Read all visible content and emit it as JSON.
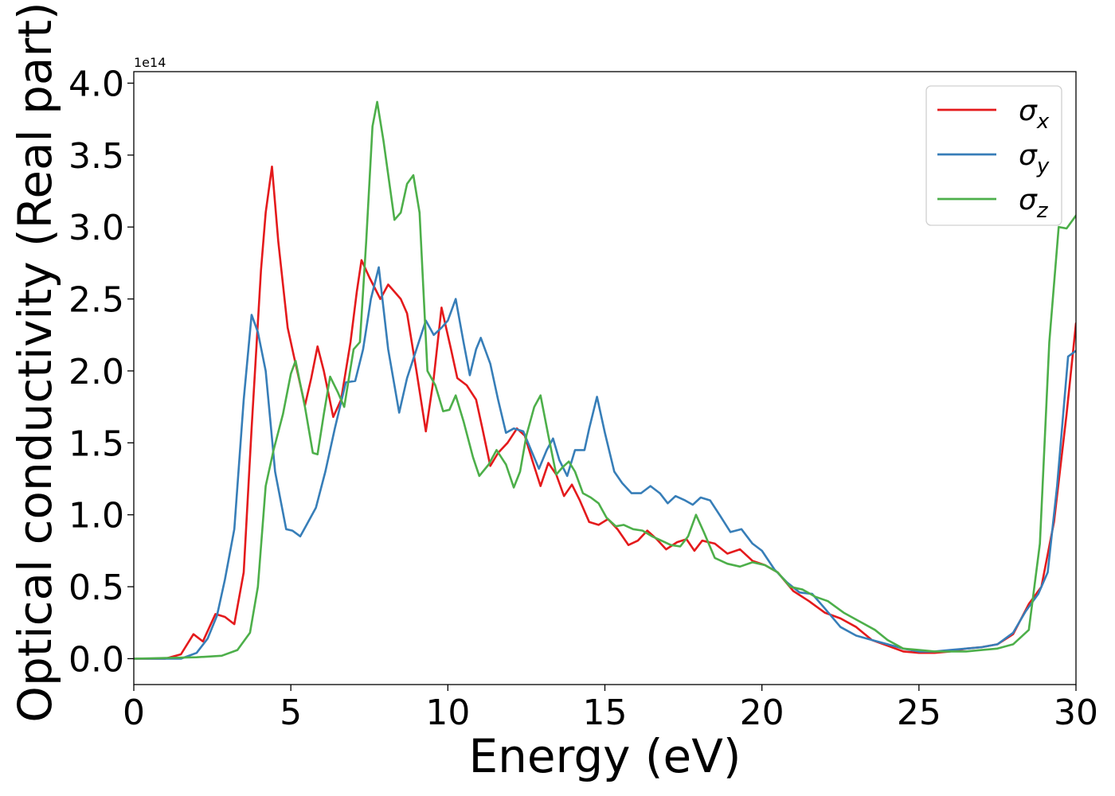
{
  "chart_data": {
    "type": "line",
    "title": "",
    "xlabel": "Energy (eV)",
    "ylabel": "Optical conductivity (Real part)",
    "y_offset_label": "1e14",
    "xlim": [
      0,
      30
    ],
    "ylim": [
      -0.18,
      4.08
    ],
    "xticks": [
      0,
      5,
      10,
      15,
      20,
      25,
      30
    ],
    "yticks": [
      0.0,
      0.5,
      1.0,
      1.5,
      2.0,
      2.5,
      3.0,
      3.5,
      4.0
    ],
    "xtick_labels": [
      "0",
      "5",
      "10",
      "15",
      "20",
      "25",
      "30"
    ],
    "ytick_labels": [
      "0.0",
      "0.5",
      "1.0",
      "1.5",
      "2.0",
      "2.5",
      "3.0",
      "3.5",
      "4.0"
    ],
    "grid": false,
    "legend": "top-right",
    "series": [
      {
        "name": "σ",
        "subscript": "x",
        "color": "#e41a1c",
        "points": [
          [
            0,
            0
          ],
          [
            1.0,
            0.0
          ],
          [
            1.5,
            0.03
          ],
          [
            1.9,
            0.17
          ],
          [
            2.2,
            0.12
          ],
          [
            2.6,
            0.31
          ],
          [
            2.9,
            0.29
          ],
          [
            3.2,
            0.24
          ],
          [
            3.5,
            0.6
          ],
          [
            3.75,
            1.6
          ],
          [
            4.05,
            2.7
          ],
          [
            4.2,
            3.1
          ],
          [
            4.4,
            3.42
          ],
          [
            4.6,
            2.9
          ],
          [
            4.9,
            2.3
          ],
          [
            5.1,
            2.1
          ],
          [
            5.45,
            1.76
          ],
          [
            5.65,
            1.95
          ],
          [
            5.85,
            2.17
          ],
          [
            6.05,
            2.0
          ],
          [
            6.35,
            1.68
          ],
          [
            6.6,
            1.8
          ],
          [
            6.9,
            2.2
          ],
          [
            7.1,
            2.55
          ],
          [
            7.25,
            2.77
          ],
          [
            7.5,
            2.65
          ],
          [
            7.85,
            2.5
          ],
          [
            8.1,
            2.6
          ],
          [
            8.3,
            2.55
          ],
          [
            8.5,
            2.5
          ],
          [
            8.7,
            2.4
          ],
          [
            9.0,
            2.0
          ],
          [
            9.3,
            1.58
          ],
          [
            9.55,
            1.95
          ],
          [
            9.8,
            2.44
          ],
          [
            10.1,
            2.15
          ],
          [
            10.3,
            1.95
          ],
          [
            10.6,
            1.9
          ],
          [
            10.9,
            1.8
          ],
          [
            11.1,
            1.6
          ],
          [
            11.35,
            1.34
          ],
          [
            11.6,
            1.43
          ],
          [
            11.9,
            1.5
          ],
          [
            12.2,
            1.6
          ],
          [
            12.45,
            1.55
          ],
          [
            12.7,
            1.37
          ],
          [
            12.95,
            1.2
          ],
          [
            13.2,
            1.36
          ],
          [
            13.45,
            1.28
          ],
          [
            13.7,
            1.13
          ],
          [
            13.95,
            1.21
          ],
          [
            14.2,
            1.1
          ],
          [
            14.5,
            0.95
          ],
          [
            14.8,
            0.93
          ],
          [
            15.1,
            0.97
          ],
          [
            15.4,
            0.9
          ],
          [
            15.75,
            0.79
          ],
          [
            16.05,
            0.82
          ],
          [
            16.35,
            0.89
          ],
          [
            16.65,
            0.83
          ],
          [
            16.95,
            0.76
          ],
          [
            17.3,
            0.81
          ],
          [
            17.6,
            0.83
          ],
          [
            17.85,
            0.75
          ],
          [
            18.1,
            0.82
          ],
          [
            18.5,
            0.8
          ],
          [
            18.9,
            0.73
          ],
          [
            19.3,
            0.76
          ],
          [
            19.7,
            0.68
          ],
          [
            20.1,
            0.65
          ],
          [
            20.5,
            0.6
          ],
          [
            21.0,
            0.47
          ],
          [
            21.5,
            0.4
          ],
          [
            22.0,
            0.32
          ],
          [
            22.5,
            0.28
          ],
          [
            23.0,
            0.22
          ],
          [
            23.5,
            0.13
          ],
          [
            24.0,
            0.09
          ],
          [
            24.5,
            0.05
          ],
          [
            25.0,
            0.04
          ],
          [
            25.5,
            0.04
          ],
          [
            26.0,
            0.05
          ],
          [
            26.5,
            0.07
          ],
          [
            27.0,
            0.08
          ],
          [
            27.5,
            0.1
          ],
          [
            28.0,
            0.17
          ],
          [
            28.5,
            0.38
          ],
          [
            28.9,
            0.5
          ],
          [
            29.3,
            0.95
          ],
          [
            29.7,
            1.7
          ],
          [
            30.0,
            2.33
          ]
        ]
      },
      {
        "name": "σ",
        "subscript": "y",
        "color": "#377eb8",
        "points": [
          [
            0,
            0
          ],
          [
            1.5,
            0.0
          ],
          [
            2.0,
            0.04
          ],
          [
            2.35,
            0.14
          ],
          [
            2.65,
            0.3
          ],
          [
            2.9,
            0.55
          ],
          [
            3.2,
            0.9
          ],
          [
            3.5,
            1.8
          ],
          [
            3.75,
            2.39
          ],
          [
            3.95,
            2.27
          ],
          [
            4.2,
            2.0
          ],
          [
            4.5,
            1.3
          ],
          [
            4.85,
            0.9
          ],
          [
            5.05,
            0.89
          ],
          [
            5.3,
            0.85
          ],
          [
            5.55,
            0.95
          ],
          [
            5.8,
            1.05
          ],
          [
            6.1,
            1.3
          ],
          [
            6.4,
            1.6
          ],
          [
            6.75,
            1.92
          ],
          [
            7.05,
            1.93
          ],
          [
            7.3,
            2.15
          ],
          [
            7.55,
            2.5
          ],
          [
            7.8,
            2.72
          ],
          [
            8.1,
            2.15
          ],
          [
            8.45,
            1.71
          ],
          [
            8.7,
            1.95
          ],
          [
            9.0,
            2.15
          ],
          [
            9.3,
            2.35
          ],
          [
            9.55,
            2.25
          ],
          [
            9.8,
            2.3
          ],
          [
            10.0,
            2.35
          ],
          [
            10.25,
            2.5
          ],
          [
            10.5,
            2.2
          ],
          [
            10.7,
            1.97
          ],
          [
            10.9,
            2.15
          ],
          [
            11.05,
            2.23
          ],
          [
            11.35,
            2.05
          ],
          [
            11.6,
            1.8
          ],
          [
            11.85,
            1.57
          ],
          [
            12.1,
            1.6
          ],
          [
            12.4,
            1.58
          ],
          [
            12.65,
            1.45
          ],
          [
            12.9,
            1.32
          ],
          [
            13.15,
            1.45
          ],
          [
            13.35,
            1.53
          ],
          [
            13.55,
            1.38
          ],
          [
            13.8,
            1.27
          ],
          [
            14.05,
            1.45
          ],
          [
            14.35,
            1.45
          ],
          [
            14.5,
            1.6
          ],
          [
            14.75,
            1.82
          ],
          [
            15.0,
            1.57
          ],
          [
            15.3,
            1.3
          ],
          [
            15.55,
            1.22
          ],
          [
            15.85,
            1.15
          ],
          [
            16.15,
            1.15
          ],
          [
            16.45,
            1.2
          ],
          [
            16.75,
            1.15
          ],
          [
            17.0,
            1.08
          ],
          [
            17.25,
            1.13
          ],
          [
            17.55,
            1.1
          ],
          [
            17.8,
            1.07
          ],
          [
            18.05,
            1.12
          ],
          [
            18.35,
            1.1
          ],
          [
            18.65,
            1.0
          ],
          [
            19.0,
            0.88
          ],
          [
            19.35,
            0.9
          ],
          [
            19.7,
            0.8
          ],
          [
            20.0,
            0.75
          ],
          [
            20.4,
            0.62
          ],
          [
            20.8,
            0.53
          ],
          [
            21.2,
            0.46
          ],
          [
            21.6,
            0.45
          ],
          [
            22.0,
            0.35
          ],
          [
            22.5,
            0.22
          ],
          [
            23.0,
            0.16
          ],
          [
            23.5,
            0.13
          ],
          [
            24.0,
            0.1
          ],
          [
            24.5,
            0.07
          ],
          [
            25.0,
            0.05
          ],
          [
            25.5,
            0.05
          ],
          [
            26.0,
            0.06
          ],
          [
            26.5,
            0.07
          ],
          [
            27.0,
            0.08
          ],
          [
            27.5,
            0.1
          ],
          [
            28.0,
            0.18
          ],
          [
            28.4,
            0.33
          ],
          [
            28.8,
            0.45
          ],
          [
            29.1,
            0.6
          ],
          [
            29.4,
            1.2
          ],
          [
            29.75,
            2.1
          ],
          [
            30.0,
            2.14
          ]
        ]
      },
      {
        "name": "σ",
        "subscript": "z",
        "color": "#4daf4a",
        "points": [
          [
            0,
            0
          ],
          [
            2.0,
            0.01
          ],
          [
            2.8,
            0.02
          ],
          [
            3.3,
            0.06
          ],
          [
            3.7,
            0.18
          ],
          [
            3.95,
            0.5
          ],
          [
            4.2,
            1.2
          ],
          [
            4.45,
            1.45
          ],
          [
            4.75,
            1.7
          ],
          [
            5.0,
            1.98
          ],
          [
            5.15,
            2.07
          ],
          [
            5.45,
            1.75
          ],
          [
            5.7,
            1.43
          ],
          [
            5.85,
            1.42
          ],
          [
            6.05,
            1.7
          ],
          [
            6.25,
            1.96
          ],
          [
            6.5,
            1.85
          ],
          [
            6.7,
            1.75
          ],
          [
            7.0,
            2.15
          ],
          [
            7.2,
            2.2
          ],
          [
            7.4,
            2.9
          ],
          [
            7.6,
            3.7
          ],
          [
            7.75,
            3.87
          ],
          [
            7.95,
            3.6
          ],
          [
            8.3,
            3.05
          ],
          [
            8.5,
            3.1
          ],
          [
            8.7,
            3.3
          ],
          [
            8.9,
            3.36
          ],
          [
            9.1,
            3.1
          ],
          [
            9.35,
            2.0
          ],
          [
            9.6,
            1.9
          ],
          [
            9.85,
            1.72
          ],
          [
            10.05,
            1.73
          ],
          [
            10.25,
            1.83
          ],
          [
            10.5,
            1.65
          ],
          [
            10.8,
            1.4
          ],
          [
            11.0,
            1.27
          ],
          [
            11.3,
            1.35
          ],
          [
            11.55,
            1.45
          ],
          [
            11.85,
            1.35
          ],
          [
            12.1,
            1.19
          ],
          [
            12.3,
            1.3
          ],
          [
            12.5,
            1.55
          ],
          [
            12.75,
            1.75
          ],
          [
            12.95,
            1.83
          ],
          [
            13.2,
            1.55
          ],
          [
            13.45,
            1.28
          ],
          [
            13.65,
            1.33
          ],
          [
            13.85,
            1.37
          ],
          [
            14.05,
            1.3
          ],
          [
            14.3,
            1.15
          ],
          [
            14.55,
            1.12
          ],
          [
            14.8,
            1.08
          ],
          [
            15.05,
            0.98
          ],
          [
            15.35,
            0.92
          ],
          [
            15.6,
            0.93
          ],
          [
            15.9,
            0.9
          ],
          [
            16.2,
            0.89
          ],
          [
            16.5,
            0.85
          ],
          [
            16.8,
            0.82
          ],
          [
            17.1,
            0.79
          ],
          [
            17.4,
            0.78
          ],
          [
            17.65,
            0.85
          ],
          [
            17.9,
            1.0
          ],
          [
            18.15,
            0.88
          ],
          [
            18.5,
            0.7
          ],
          [
            18.9,
            0.66
          ],
          [
            19.3,
            0.64
          ],
          [
            19.7,
            0.67
          ],
          [
            20.1,
            0.65
          ],
          [
            20.5,
            0.6
          ],
          [
            20.9,
            0.5
          ],
          [
            21.3,
            0.48
          ],
          [
            21.7,
            0.43
          ],
          [
            22.1,
            0.4
          ],
          [
            22.6,
            0.32
          ],
          [
            23.1,
            0.26
          ],
          [
            23.6,
            0.2
          ],
          [
            24.0,
            0.13
          ],
          [
            24.5,
            0.07
          ],
          [
            25.0,
            0.06
          ],
          [
            25.5,
            0.05
          ],
          [
            26.0,
            0.05
          ],
          [
            26.5,
            0.05
          ],
          [
            27.0,
            0.06
          ],
          [
            27.5,
            0.07
          ],
          [
            28.0,
            0.1
          ],
          [
            28.5,
            0.2
          ],
          [
            28.85,
            0.8
          ],
          [
            29.15,
            2.2
          ],
          [
            29.45,
            3.0
          ],
          [
            29.7,
            2.99
          ],
          [
            30.0,
            3.08
          ]
        ]
      }
    ]
  }
}
